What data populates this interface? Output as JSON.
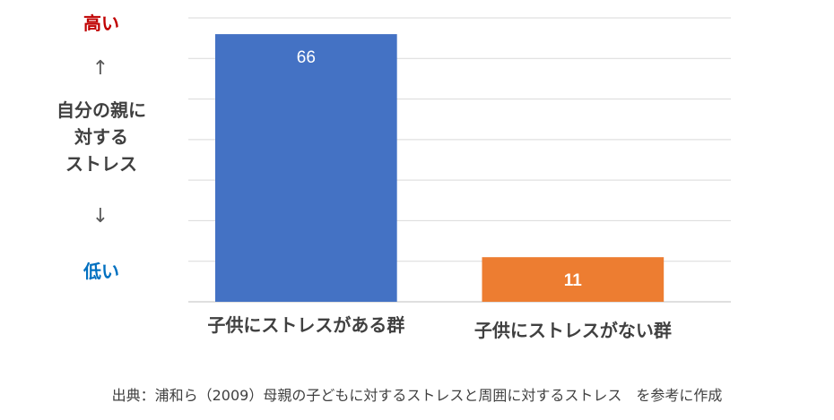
{
  "chart_data": {
    "type": "bar",
    "categories": [
      "子供にストレスがある群",
      "子供にストレスがない群"
    ],
    "values": [
      66,
      11
    ],
    "data_labels": [
      "66",
      "11"
    ],
    "colors": [
      "#4472c4",
      "#ed7d31"
    ],
    "label_colors": [
      "#ffffff",
      "#ffffff"
    ],
    "ylim": [
      0,
      70
    ],
    "grid": true,
    "show_value_axis": false,
    "y_annotation": {
      "high": "高い",
      "up_arrow": "↑",
      "lines": [
        "自分の親に",
        "対する",
        "ストレス"
      ],
      "down_arrow": "↓",
      "low": "低い"
    }
  },
  "source_note": "出典：浦和ら（2009）母親の子どもに対するストレスと周囲に対するストレス　を参考に作成",
  "colors": {
    "high": "#c00000",
    "low": "#0070c0",
    "gridline": "#d9d9d9",
    "axis": "#bfbfbf",
    "text": "#404040"
  }
}
